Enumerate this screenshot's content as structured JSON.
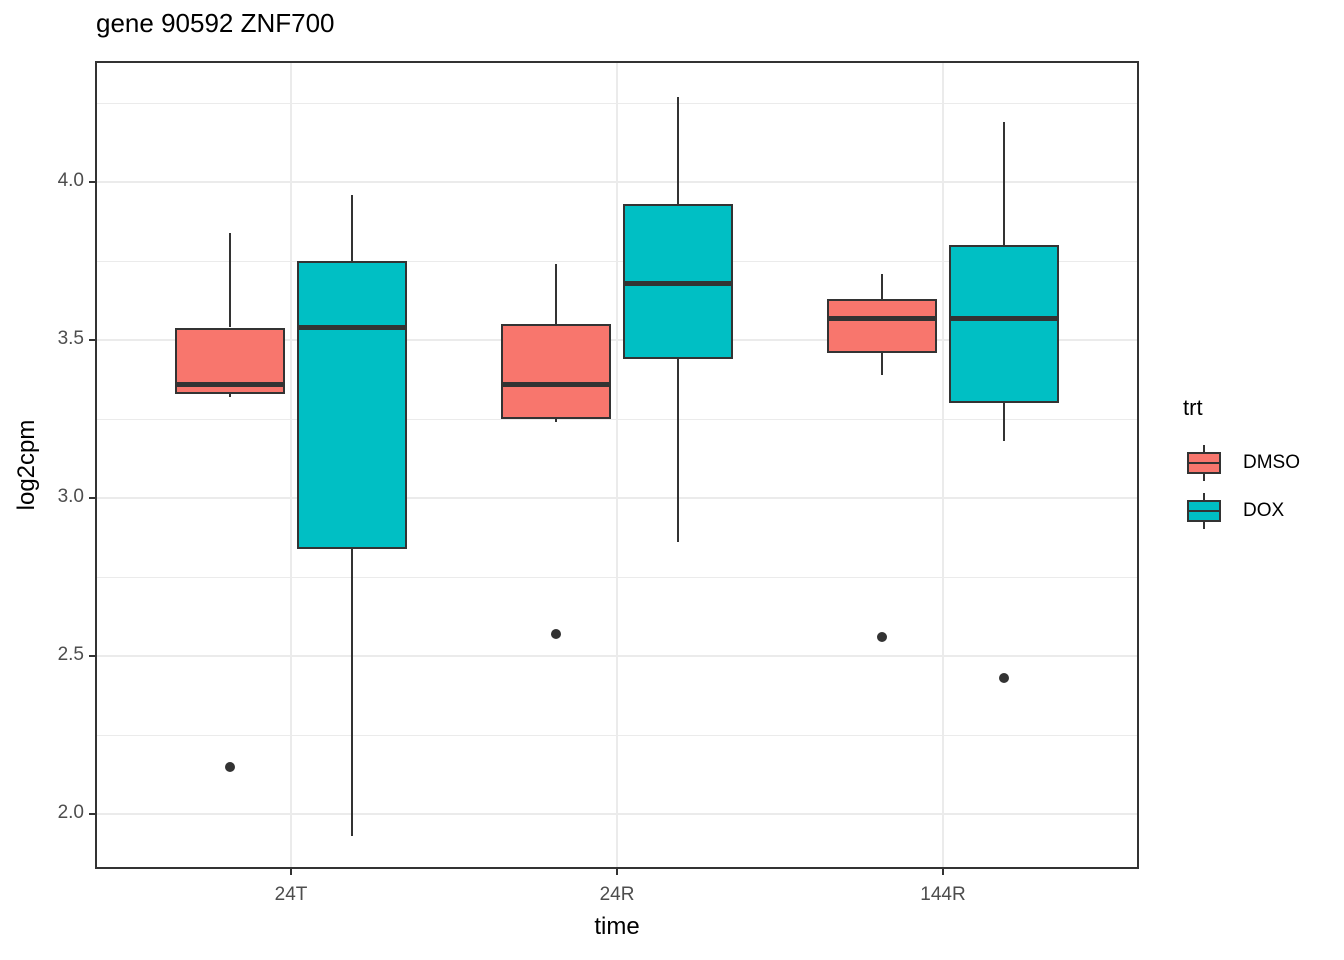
{
  "title": "gene 90592 ZNF700",
  "axes": {
    "x_title": "time",
    "y_title": "log2cpm"
  },
  "legend": {
    "title": "trt",
    "entries": [
      {
        "label": "DMSO",
        "color": "#F8766D"
      },
      {
        "label": "DOX",
        "color": "#00BFC4"
      }
    ]
  },
  "colors": {
    "box_border": "#333333",
    "grid": "#EBEBEB",
    "tick_text": "#4D4D4D",
    "panel_border": "#333333",
    "outlier": "#333333"
  },
  "chart_data": {
    "type": "boxplot",
    "title": "gene 90592 ZNF700",
    "xlabel": "time",
    "ylabel": "log2cpm",
    "categories": [
      "24T",
      "24R",
      "144R"
    ],
    "y_ticks": [
      2.0,
      2.5,
      3.0,
      3.5,
      4.0
    ],
    "y_minor_ticks": [
      2.25,
      2.75,
      3.25,
      3.75,
      4.25
    ],
    "ylim": [
      1.83,
      4.38
    ],
    "grid": true,
    "legend_position": "right",
    "legend_title": "trt",
    "series": [
      {
        "name": "DMSO",
        "color": "#F8766D",
        "boxes": [
          {
            "category": "24T",
            "whisker_low": 3.32,
            "q1": 3.33,
            "median": 3.36,
            "q3": 3.54,
            "whisker_high": 3.84,
            "outliers": [
              2.15
            ]
          },
          {
            "category": "24R",
            "whisker_low": 3.24,
            "q1": 3.25,
            "median": 3.36,
            "q3": 3.55,
            "whisker_high": 3.74,
            "outliers": [
              2.57
            ]
          },
          {
            "category": "144R",
            "whisker_low": 3.39,
            "q1": 3.46,
            "median": 3.57,
            "q3": 3.63,
            "whisker_high": 3.71,
            "outliers": [
              2.56
            ]
          }
        ]
      },
      {
        "name": "DOX",
        "color": "#00BFC4",
        "boxes": [
          {
            "category": "24T",
            "whisker_low": 1.93,
            "q1": 2.84,
            "median": 3.54,
            "q3": 3.75,
            "whisker_high": 3.96,
            "outliers": []
          },
          {
            "category": "24R",
            "whisker_low": 2.86,
            "q1": 3.44,
            "median": 3.68,
            "q3": 3.93,
            "whisker_high": 4.27,
            "outliers": []
          },
          {
            "category": "144R",
            "whisker_low": 3.18,
            "q1": 3.3,
            "median": 3.57,
            "q3": 3.8,
            "whisker_high": 4.19,
            "outliers": [
              2.43
            ]
          }
        ]
      }
    ]
  }
}
